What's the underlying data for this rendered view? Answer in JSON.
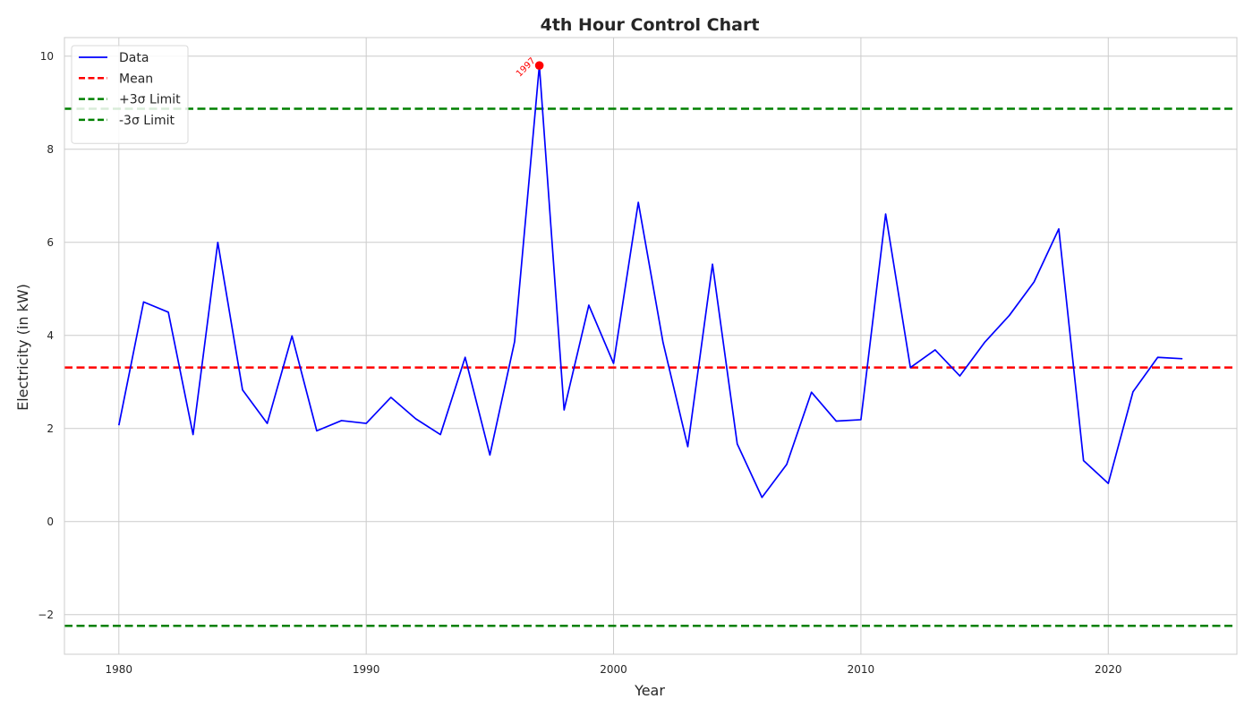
{
  "chart_data": {
    "type": "line",
    "title": "4th Hour Control Chart",
    "xlabel": "Year",
    "ylabel": "Electricity (in kW)",
    "xlim": [
      1977.8,
      2025.2
    ],
    "ylim": [
      -2.85,
      10.4
    ],
    "xticks": [
      1980,
      1990,
      2000,
      2010,
      2020
    ],
    "yticks": [
      -2,
      0,
      2,
      4,
      6,
      8,
      10
    ],
    "ytick_labels": [
      "−2",
      "0",
      "2",
      "4",
      "6",
      "8",
      "10"
    ],
    "grid": true,
    "legend_position": "top-left",
    "series": [
      {
        "name": "Data",
        "color": "#0000ff",
        "style": "solid",
        "x": [
          1980,
          1981,
          1982,
          1983,
          1984,
          1985,
          1986,
          1987,
          1988,
          1989,
          1990,
          1991,
          1992,
          1993,
          1994,
          1995,
          1996,
          1997,
          1998,
          1999,
          2000,
          2001,
          2002,
          2003,
          2004,
          2005,
          2006,
          2007,
          2008,
          2009,
          2010,
          2011,
          2012,
          2013,
          2014,
          2015,
          2016,
          2017,
          2018,
          2019,
          2020,
          2021,
          2022,
          2023
        ],
        "y": [
          2.07,
          4.72,
          4.5,
          1.87,
          6.0,
          2.83,
          2.11,
          3.99,
          1.95,
          2.17,
          2.11,
          2.67,
          2.21,
          1.87,
          3.53,
          1.43,
          3.87,
          9.8,
          2.4,
          4.65,
          3.4,
          6.86,
          3.85,
          1.61,
          5.53,
          1.67,
          0.52,
          1.23,
          2.78,
          2.16,
          2.19,
          6.61,
          3.31,
          3.69,
          3.13,
          3.85,
          4.43,
          5.15,
          6.29,
          1.31,
          0.82,
          2.79,
          3.53,
          3.5
        ]
      },
      {
        "name": "Mean",
        "color": "#ff0000",
        "style": "dashed",
        "value": 3.31
      },
      {
        "name": "+3σ Limit",
        "color": "#008000",
        "style": "dashed",
        "value": 8.87
      },
      {
        "name": "-3σ Limit",
        "color": "#008000",
        "style": "dashed",
        "value": -2.24
      }
    ],
    "outliers": [
      {
        "x": 1997,
        "y": 9.8,
        "label": "1997",
        "color": "#ff0000"
      }
    ]
  }
}
